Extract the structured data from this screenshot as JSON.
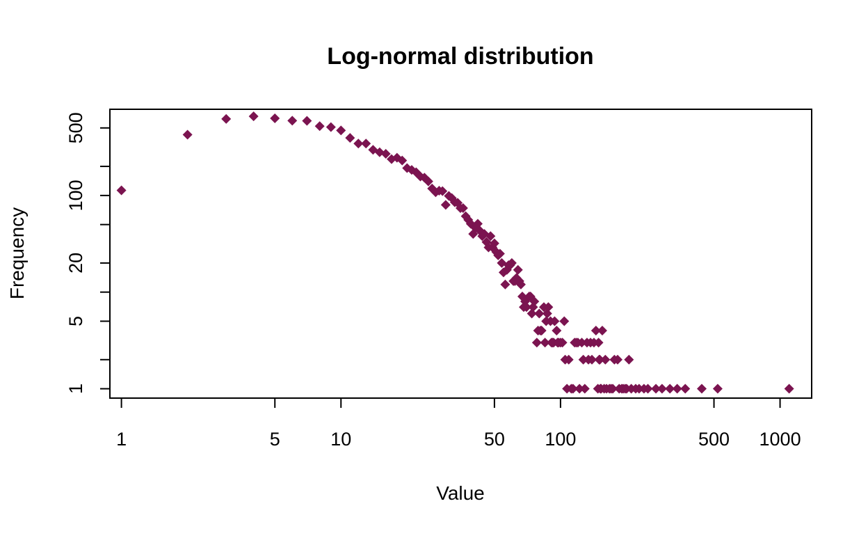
{
  "chart_data": {
    "type": "scatter",
    "title": "Log-normal distribution",
    "xlabel": "Value",
    "ylabel": "Frequency",
    "x_scale": "log",
    "y_scale": "log",
    "xlim": [
      0.886,
      1393
    ],
    "ylim": [
      0.8,
      780
    ],
    "x_ticks": [
      1,
      5,
      10,
      50,
      100,
      500,
      1000
    ],
    "x_tick_labels": [
      "1",
      "5",
      "10",
      "50",
      "100",
      "500",
      "1000"
    ],
    "y_ticks": [
      1,
      2,
      5,
      10,
      20,
      50,
      100,
      200,
      500
    ],
    "y_tick_labels": [
      "1",
      "",
      "5",
      "",
      "20",
      "",
      "100",
      "",
      "500"
    ],
    "grid": false,
    "legend": "none",
    "marker": "diamond",
    "marker_color": "#7b1450",
    "points": [
      [
        1,
        113
      ],
      [
        2,
        426
      ],
      [
        3,
        620
      ],
      [
        4,
        660
      ],
      [
        5,
        629
      ],
      [
        6,
        595
      ],
      [
        7,
        592
      ],
      [
        8,
        522
      ],
      [
        9,
        510
      ],
      [
        10,
        471
      ],
      [
        11,
        394
      ],
      [
        12,
        345
      ],
      [
        13,
        345
      ],
      [
        14,
        297
      ],
      [
        15,
        280
      ],
      [
        16,
        270
      ],
      [
        17,
        238
      ],
      [
        18,
        246
      ],
      [
        19,
        230
      ],
      [
        20,
        192
      ],
      [
        21,
        184
      ],
      [
        22,
        174
      ],
      [
        23,
        157
      ],
      [
        24,
        153
      ],
      [
        25,
        140
      ],
      [
        26,
        118
      ],
      [
        27,
        108
      ],
      [
        28,
        112
      ],
      [
        29,
        111
      ],
      [
        30,
        80
      ],
      [
        31,
        99
      ],
      [
        32,
        94
      ],
      [
        33,
        85
      ],
      [
        34,
        84
      ],
      [
        35,
        74
      ],
      [
        36,
        74
      ],
      [
        37,
        61
      ],
      [
        38,
        56
      ],
      [
        39,
        51
      ],
      [
        40,
        40
      ],
      [
        41,
        46
      ],
      [
        42,
        51
      ],
      [
        43,
        43
      ],
      [
        44,
        38
      ],
      [
        45,
        40
      ],
      [
        46,
        33
      ],
      [
        47,
        29
      ],
      [
        48,
        38
      ],
      [
        49,
        29
      ],
      [
        50,
        32
      ],
      [
        51,
        26
      ],
      [
        52,
        24
      ],
      [
        53,
        25
      ],
      [
        54,
        20
      ],
      [
        55,
        16
      ],
      [
        56,
        12
      ],
      [
        57,
        17
      ],
      [
        58,
        19
      ],
      [
        59,
        19
      ],
      [
        60,
        20
      ],
      [
        61,
        13
      ],
      [
        62,
        13
      ],
      [
        63,
        14
      ],
      [
        64,
        17
      ],
      [
        65,
        13
      ],
      [
        66,
        12
      ],
      [
        67,
        9
      ],
      [
        68,
        7
      ],
      [
        69,
        8
      ],
      [
        70,
        7
      ],
      [
        72,
        9
      ],
      [
        73,
        9
      ],
      [
        74,
        6
      ],
      [
        75,
        7
      ],
      [
        76,
        8
      ],
      [
        78,
        3
      ],
      [
        79,
        4
      ],
      [
        80,
        6
      ],
      [
        81,
        4
      ],
      [
        82,
        4
      ],
      [
        84,
        7
      ],
      [
        85,
        3
      ],
      [
        86,
        5
      ],
      [
        87,
        6
      ],
      [
        88,
        7
      ],
      [
        90,
        5
      ],
      [
        91,
        3
      ],
      [
        92,
        3
      ],
      [
        93,
        3
      ],
      [
        94,
        5
      ],
      [
        96,
        4
      ],
      [
        97,
        3
      ],
      [
        98,
        3
      ],
      [
        100,
        3
      ],
      [
        102,
        3
      ],
      [
        104,
        5
      ],
      [
        105,
        2
      ],
      [
        107,
        1
      ],
      [
        109,
        2
      ],
      [
        112,
        1
      ],
      [
        114,
        1
      ],
      [
        116,
        3
      ],
      [
        118,
        3
      ],
      [
        120,
        3
      ],
      [
        122,
        1
      ],
      [
        125,
        3
      ],
      [
        127,
        2
      ],
      [
        129,
        1
      ],
      [
        132,
        3
      ],
      [
        134,
        2
      ],
      [
        137,
        3
      ],
      [
        139,
        2
      ],
      [
        142,
        3
      ],
      [
        145,
        4
      ],
      [
        148,
        1
      ],
      [
        149,
        3
      ],
      [
        150,
        2
      ],
      [
        151,
        2
      ],
      [
        152,
        1
      ],
      [
        153,
        1
      ],
      [
        155,
        4
      ],
      [
        158,
        1
      ],
      [
        160,
        2
      ],
      [
        162,
        1
      ],
      [
        167,
        1
      ],
      [
        170,
        1
      ],
      [
        173,
        1
      ],
      [
        176,
        2
      ],
      [
        182,
        2
      ],
      [
        185,
        1
      ],
      [
        190,
        1
      ],
      [
        193,
        1
      ],
      [
        197,
        1
      ],
      [
        200,
        1
      ],
      [
        205,
        2
      ],
      [
        210,
        1
      ],
      [
        220,
        1
      ],
      [
        228,
        1
      ],
      [
        240,
        1
      ],
      [
        250,
        1
      ],
      [
        272,
        1
      ],
      [
        290,
        1
      ],
      [
        315,
        1
      ],
      [
        340,
        1
      ],
      [
        370,
        1
      ],
      [
        440,
        1
      ],
      [
        520,
        1
      ],
      [
        1100,
        1
      ]
    ]
  }
}
